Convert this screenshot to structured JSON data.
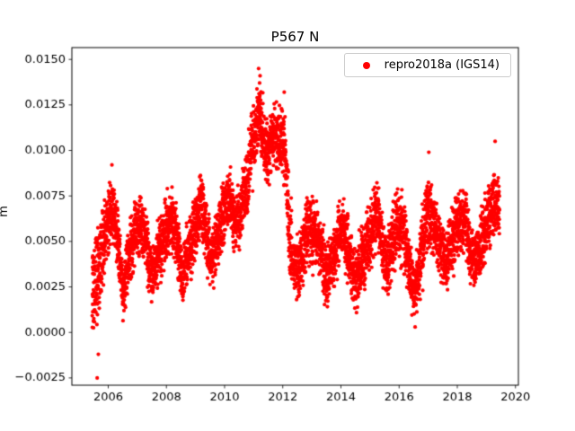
{
  "chart_data": {
    "type": "scatter",
    "title": "P567 N",
    "xlabel": "",
    "ylabel": "m",
    "legend_position": "upper right",
    "grid": false,
    "xlim": [
      2004.75,
      2020.1
    ],
    "ylim": [
      -0.0029,
      0.01565
    ],
    "xticks": [
      2006,
      2008,
      2010,
      2012,
      2014,
      2016,
      2018,
      2020
    ],
    "yticks": {
      "values": [
        -0.0025,
        0.0,
        0.0025,
        0.005,
        0.0075,
        0.01,
        0.0125,
        0.015
      ],
      "labels": [
        "−0.0025",
        "0.0000",
        "0.0025",
        "0.0050",
        "0.0075",
        "0.0100",
        "0.0125",
        "0.0150"
      ]
    },
    "series": [
      {
        "name": "repro2018a (IGS14)",
        "color": "#ff0000",
        "marker": "point"
      }
    ],
    "sampling": {
      "start": 2005.45,
      "end": 2019.45,
      "points_per_year": 365,
      "seed": 42,
      "noise_scale": 1.1
    },
    "envelope": [
      [
        2005.45,
        0.0022,
        0.003
      ],
      [
        2005.6,
        0.0028,
        0.0034
      ],
      [
        2005.8,
        0.0045,
        0.003
      ],
      [
        2006.0,
        0.006,
        0.0025
      ],
      [
        2006.15,
        0.0068,
        0.0024
      ],
      [
        2006.3,
        0.0055,
        0.0025
      ],
      [
        2006.5,
        0.0022,
        0.002
      ],
      [
        2006.7,
        0.004,
        0.0022
      ],
      [
        2006.9,
        0.0055,
        0.0022
      ],
      [
        2007.1,
        0.006,
        0.002
      ],
      [
        2007.3,
        0.005,
        0.0022
      ],
      [
        2007.5,
        0.003,
        0.0018
      ],
      [
        2007.75,
        0.0045,
        0.0022
      ],
      [
        2008.0,
        0.0058,
        0.0022
      ],
      [
        2008.2,
        0.0065,
        0.0025
      ],
      [
        2008.4,
        0.0045,
        0.0025
      ],
      [
        2008.55,
        0.0028,
        0.002
      ],
      [
        2008.75,
        0.0045,
        0.0022
      ],
      [
        2009.0,
        0.0058,
        0.0022
      ],
      [
        2009.2,
        0.0072,
        0.0024
      ],
      [
        2009.4,
        0.005,
        0.0025
      ],
      [
        2009.55,
        0.0038,
        0.002
      ],
      [
        2009.75,
        0.0052,
        0.0022
      ],
      [
        2010.0,
        0.0068,
        0.0024
      ],
      [
        2010.15,
        0.0075,
        0.0022
      ],
      [
        2010.35,
        0.006,
        0.002
      ],
      [
        2010.5,
        0.0062,
        0.002
      ],
      [
        2010.7,
        0.0078,
        0.0022
      ],
      [
        2010.9,
        0.0095,
        0.0025
      ],
      [
        2011.05,
        0.011,
        0.0025
      ],
      [
        2011.2,
        0.0122,
        0.0022
      ],
      [
        2011.35,
        0.0105,
        0.0022
      ],
      [
        2011.5,
        0.0098,
        0.002
      ],
      [
        2011.65,
        0.0108,
        0.002
      ],
      [
        2011.8,
        0.0105,
        0.0022
      ],
      [
        2012.0,
        0.0105,
        0.0022
      ],
      [
        2012.05,
        0.0102,
        0.0025
      ],
      [
        2012.1,
        0.0095,
        0.003
      ],
      [
        2012.2,
        0.006,
        0.0035
      ],
      [
        2012.35,
        0.004,
        0.0022
      ],
      [
        2012.5,
        0.0035,
        0.002
      ],
      [
        2012.7,
        0.0045,
        0.0022
      ],
      [
        2012.9,
        0.0055,
        0.0025
      ],
      [
        2013.1,
        0.0055,
        0.0022
      ],
      [
        2013.3,
        0.0045,
        0.0022
      ],
      [
        2013.5,
        0.003,
        0.0022
      ],
      [
        2013.7,
        0.0042,
        0.002
      ],
      [
        2013.9,
        0.005,
        0.0022
      ],
      [
        2014.1,
        0.0055,
        0.0022
      ],
      [
        2014.3,
        0.0042,
        0.0022
      ],
      [
        2014.5,
        0.0028,
        0.002
      ],
      [
        2014.7,
        0.0038,
        0.0022
      ],
      [
        2014.9,
        0.0045,
        0.0025
      ],
      [
        2015.1,
        0.0058,
        0.0025
      ],
      [
        2015.25,
        0.0065,
        0.0022
      ],
      [
        2015.45,
        0.0045,
        0.0022
      ],
      [
        2015.6,
        0.0038,
        0.002
      ],
      [
        2015.8,
        0.0052,
        0.0025
      ],
      [
        2016.0,
        0.0062,
        0.0025
      ],
      [
        2016.2,
        0.005,
        0.0022
      ],
      [
        2016.4,
        0.003,
        0.0022
      ],
      [
        2016.55,
        0.0022,
        0.0018
      ],
      [
        2016.75,
        0.0042,
        0.0025
      ],
      [
        2017.0,
        0.0068,
        0.0026
      ],
      [
        2017.2,
        0.006,
        0.0022
      ],
      [
        2017.4,
        0.0048,
        0.002
      ],
      [
        2017.6,
        0.0038,
        0.002
      ],
      [
        2017.8,
        0.0048,
        0.0022
      ],
      [
        2018.0,
        0.0058,
        0.0022
      ],
      [
        2018.25,
        0.0063,
        0.0024
      ],
      [
        2018.45,
        0.0045,
        0.0022
      ],
      [
        2018.6,
        0.0038,
        0.002
      ],
      [
        2018.8,
        0.0048,
        0.0022
      ],
      [
        2019.0,
        0.0058,
        0.0022
      ],
      [
        2019.2,
        0.0068,
        0.0024
      ],
      [
        2019.35,
        0.0072,
        0.0024
      ],
      [
        2019.45,
        0.0068,
        0.0022
      ]
    ],
    "outliers": [
      [
        2005.62,
        -0.0025
      ],
      [
        2005.66,
        -0.0012
      ],
      [
        2011.17,
        0.0145
      ],
      [
        2011.22,
        0.0141
      ],
      [
        2012.05,
        0.0132
      ],
      [
        2016.55,
        0.0003
      ],
      [
        2017.02,
        0.0099
      ],
      [
        2019.3,
        0.0105
      ]
    ]
  }
}
